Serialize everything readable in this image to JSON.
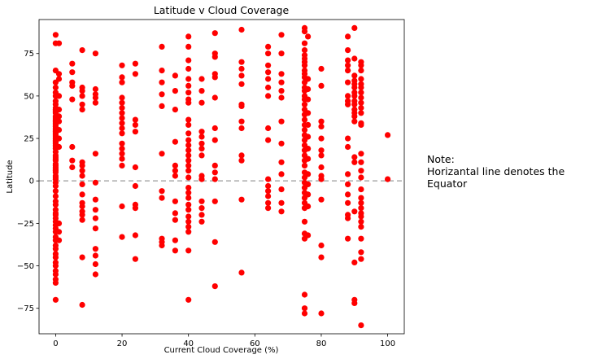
{
  "chart_data": {
    "type": "scatter",
    "title": "Latitude v Cloud Coverage",
    "xlabel": "Current Cloud Coverage (%)",
    "ylabel": "Latitude",
    "xlim": [
      -5,
      105
    ],
    "ylim": [
      -90,
      95
    ],
    "xticks": [
      0,
      20,
      40,
      60,
      80,
      100
    ],
    "yticks": [
      -75,
      -50,
      -25,
      0,
      25,
      50,
      75
    ],
    "marker_color": "#ff0000",
    "reference_line": {
      "y": 0,
      "style": "dashed",
      "color": "#b0b0b0"
    },
    "points": [
      [
        0,
        86
      ],
      [
        0,
        81
      ],
      [
        1,
        81
      ],
      [
        0,
        65
      ],
      [
        1,
        63
      ],
      [
        0,
        58
      ],
      [
        0,
        55
      ],
      [
        0,
        52
      ],
      [
        0,
        50
      ],
      [
        0,
        47
      ],
      [
        0,
        45
      ],
      [
        0,
        43
      ],
      [
        0,
        42
      ],
      [
        0,
        41
      ],
      [
        0,
        40
      ],
      [
        0,
        38
      ],
      [
        0,
        37
      ],
      [
        0,
        36
      ],
      [
        0,
        35
      ],
      [
        0,
        34
      ],
      [
        0,
        33
      ],
      [
        0,
        32
      ],
      [
        0,
        31
      ],
      [
        0,
        30
      ],
      [
        0,
        29
      ],
      [
        0,
        28
      ],
      [
        0,
        27
      ],
      [
        0,
        26
      ],
      [
        0,
        25
      ],
      [
        0,
        24
      ],
      [
        0,
        23
      ],
      [
        0,
        22
      ],
      [
        0,
        21
      ],
      [
        0,
        20
      ],
      [
        0,
        19
      ],
      [
        0,
        17
      ],
      [
        0,
        15
      ],
      [
        0,
        14
      ],
      [
        0,
        13
      ],
      [
        0,
        12
      ],
      [
        0,
        10
      ],
      [
        0,
        9
      ],
      [
        0,
        8
      ],
      [
        0,
        7
      ],
      [
        0,
        6
      ],
      [
        0,
        5
      ],
      [
        0,
        3
      ],
      [
        0,
        2
      ],
      [
        0,
        1
      ],
      [
        0,
        -1
      ],
      [
        0,
        -3
      ],
      [
        0,
        -6
      ],
      [
        0,
        -9
      ],
      [
        0,
        -12
      ],
      [
        0,
        -14
      ],
      [
        0,
        -17
      ],
      [
        0,
        -19
      ],
      [
        0,
        -20
      ],
      [
        0,
        -22
      ],
      [
        0,
        -24
      ],
      [
        0,
        -26
      ],
      [
        0,
        -28
      ],
      [
        0,
        -30
      ],
      [
        0,
        -33
      ],
      [
        0,
        -35
      ],
      [
        0,
        -38
      ],
      [
        0,
        -40
      ],
      [
        0,
        -43
      ],
      [
        0,
        -45
      ],
      [
        0,
        -48
      ],
      [
        0,
        -50
      ],
      [
        0,
        -53
      ],
      [
        0,
        -55
      ],
      [
        0,
        -58
      ],
      [
        0,
        -60
      ],
      [
        0,
        -70
      ],
      [
        1,
        60
      ],
      [
        1,
        50
      ],
      [
        1,
        42
      ],
      [
        1,
        38
      ],
      [
        1,
        35
      ],
      [
        1,
        30
      ],
      [
        1,
        25
      ],
      [
        1,
        20
      ],
      [
        1,
        -25
      ],
      [
        1,
        -30
      ],
      [
        1,
        -35
      ],
      [
        5,
        69
      ],
      [
        5,
        64
      ],
      [
        5,
        58
      ],
      [
        5,
        56
      ],
      [
        5,
        48
      ],
      [
        5,
        20
      ],
      [
        5,
        12
      ],
      [
        5,
        8
      ],
      [
        8,
        77
      ],
      [
        8,
        55
      ],
      [
        8,
        53
      ],
      [
        8,
        50
      ],
      [
        8,
        45
      ],
      [
        8,
        42
      ],
      [
        8,
        11
      ],
      [
        8,
        9
      ],
      [
        8,
        6
      ],
      [
        8,
        3
      ],
      [
        8,
        -2
      ],
      [
        8,
        -8
      ],
      [
        8,
        -13
      ],
      [
        8,
        -15
      ],
      [
        8,
        -18
      ],
      [
        8,
        -20
      ],
      [
        8,
        -23
      ],
      [
        8,
        -45
      ],
      [
        8,
        -73
      ],
      [
        12,
        75
      ],
      [
        12,
        54
      ],
      [
        12,
        51
      ],
      [
        12,
        49
      ],
      [
        12,
        46
      ],
      [
        12,
        16
      ],
      [
        12,
        -1
      ],
      [
        12,
        -11
      ],
      [
        12,
        -17
      ],
      [
        12,
        -22
      ],
      [
        12,
        -28
      ],
      [
        12,
        -40
      ],
      [
        12,
        -44
      ],
      [
        12,
        -49
      ],
      [
        12,
        -55
      ],
      [
        20,
        68
      ],
      [
        20,
        61
      ],
      [
        20,
        58
      ],
      [
        20,
        49
      ],
      [
        20,
        46
      ],
      [
        20,
        43
      ],
      [
        20,
        40
      ],
      [
        20,
        37
      ],
      [
        20,
        34
      ],
      [
        20,
        31
      ],
      [
        20,
        28
      ],
      [
        20,
        22
      ],
      [
        20,
        19
      ],
      [
        20,
        16
      ],
      [
        20,
        13
      ],
      [
        20,
        9
      ],
      [
        20,
        -15
      ],
      [
        20,
        -33
      ],
      [
        24,
        69
      ],
      [
        24,
        63
      ],
      [
        24,
        36
      ],
      [
        24,
        33
      ],
      [
        24,
        29
      ],
      [
        24,
        8
      ],
      [
        24,
        -3
      ],
      [
        24,
        -14
      ],
      [
        24,
        -16
      ],
      [
        24,
        -32
      ],
      [
        24,
        -46
      ],
      [
        32,
        79
      ],
      [
        32,
        65
      ],
      [
        32,
        58
      ],
      [
        32,
        51
      ],
      [
        32,
        44
      ],
      [
        32,
        16
      ],
      [
        32,
        -6
      ],
      [
        32,
        -10
      ],
      [
        32,
        -34
      ],
      [
        32,
        -36
      ],
      [
        32,
        -38
      ],
      [
        36,
        62
      ],
      [
        36,
        53
      ],
      [
        36,
        42
      ],
      [
        36,
        23
      ],
      [
        36,
        9
      ],
      [
        36,
        6
      ],
      [
        36,
        3
      ],
      [
        36,
        -12
      ],
      [
        36,
        -19
      ],
      [
        36,
        -23
      ],
      [
        36,
        -35
      ],
      [
        36,
        -41
      ],
      [
        40,
        85
      ],
      [
        40,
        79
      ],
      [
        40,
        71
      ],
      [
        40,
        66
      ],
      [
        40,
        60
      ],
      [
        40,
        56
      ],
      [
        40,
        52
      ],
      [
        40,
        48
      ],
      [
        40,
        46
      ],
      [
        40,
        36
      ],
      [
        40,
        33
      ],
      [
        40,
        28
      ],
      [
        40,
        24
      ],
      [
        40,
        21
      ],
      [
        40,
        18
      ],
      [
        40,
        15
      ],
      [
        40,
        12
      ],
      [
        40,
        9
      ],
      [
        40,
        6
      ],
      [
        40,
        2
      ],
      [
        40,
        -4
      ],
      [
        40,
        -7
      ],
      [
        40,
        -10
      ],
      [
        40,
        -14
      ],
      [
        40,
        -17
      ],
      [
        40,
        -21
      ],
      [
        40,
        -24
      ],
      [
        40,
        -27
      ],
      [
        40,
        -30
      ],
      [
        40,
        -41
      ],
      [
        40,
        -70
      ],
      [
        44,
        60
      ],
      [
        44,
        53
      ],
      [
        44,
        46
      ],
      [
        44,
        29
      ],
      [
        44,
        26
      ],
      [
        44,
        22
      ],
      [
        44,
        19
      ],
      [
        44,
        15
      ],
      [
        44,
        3
      ],
      [
        44,
        1
      ],
      [
        44,
        -12
      ],
      [
        44,
        -16
      ],
      [
        44,
        -20
      ],
      [
        44,
        -24
      ],
      [
        48,
        87
      ],
      [
        48,
        75
      ],
      [
        48,
        73
      ],
      [
        48,
        63
      ],
      [
        48,
        61
      ],
      [
        48,
        49
      ],
      [
        48,
        31
      ],
      [
        48,
        24
      ],
      [
        48,
        9
      ],
      [
        48,
        5
      ],
      [
        48,
        1
      ],
      [
        48,
        -12
      ],
      [
        48,
        -36
      ],
      [
        48,
        -62
      ],
      [
        56,
        89
      ],
      [
        56,
        70
      ],
      [
        56,
        66
      ],
      [
        56,
        62
      ],
      [
        56,
        57
      ],
      [
        56,
        45
      ],
      [
        56,
        44
      ],
      [
        56,
        35
      ],
      [
        56,
        31
      ],
      [
        56,
        15
      ],
      [
        56,
        12
      ],
      [
        56,
        -11
      ],
      [
        56,
        -54
      ],
      [
        64,
        79
      ],
      [
        64,
        75
      ],
      [
        64,
        68
      ],
      [
        64,
        64
      ],
      [
        64,
        60
      ],
      [
        64,
        55
      ],
      [
        64,
        50
      ],
      [
        64,
        31
      ],
      [
        64,
        24
      ],
      [
        64,
        1
      ],
      [
        64,
        -3
      ],
      [
        64,
        -6
      ],
      [
        64,
        -9
      ],
      [
        64,
        -13
      ],
      [
        64,
        -16
      ],
      [
        68,
        86
      ],
      [
        68,
        75
      ],
      [
        68,
        63
      ],
      [
        68,
        58
      ],
      [
        68,
        53
      ],
      [
        68,
        49
      ],
      [
        68,
        35
      ],
      [
        68,
        22
      ],
      [
        68,
        11
      ],
      [
        68,
        4
      ],
      [
        68,
        -5
      ],
      [
        68,
        -13
      ],
      [
        68,
        -18
      ],
      [
        75,
        90
      ],
      [
        75,
        88
      ],
      [
        75,
        81
      ],
      [
        75,
        77
      ],
      [
        75,
        74
      ],
      [
        75,
        72
      ],
      [
        75,
        70
      ],
      [
        75,
        68
      ],
      [
        75,
        65
      ],
      [
        75,
        63
      ],
      [
        75,
        61
      ],
      [
        75,
        58
      ],
      [
        75,
        55
      ],
      [
        75,
        53
      ],
      [
        75,
        50
      ],
      [
        75,
        48
      ],
      [
        75,
        45
      ],
      [
        75,
        42
      ],
      [
        75,
        39
      ],
      [
        75,
        36
      ],
      [
        75,
        33
      ],
      [
        75,
        30
      ],
      [
        75,
        27
      ],
      [
        75,
        24
      ],
      [
        75,
        21
      ],
      [
        75,
        18
      ],
      [
        75,
        15
      ],
      [
        75,
        12
      ],
      [
        75,
        9
      ],
      [
        75,
        5
      ],
      [
        75,
        2
      ],
      [
        75,
        -1
      ],
      [
        75,
        -4
      ],
      [
        75,
        -7
      ],
      [
        75,
        -10
      ],
      [
        75,
        -13
      ],
      [
        75,
        -16
      ],
      [
        75,
        -24
      ],
      [
        75,
        -31
      ],
      [
        75,
        -34
      ],
      [
        75,
        -67
      ],
      [
        75,
        -75
      ],
      [
        75,
        -78
      ],
      [
        76,
        85
      ],
      [
        76,
        60
      ],
      [
        76,
        54
      ],
      [
        76,
        48
      ],
      [
        76,
        40
      ],
      [
        76,
        33
      ],
      [
        76,
        26
      ],
      [
        76,
        19
      ],
      [
        76,
        13
      ],
      [
        76,
        4
      ],
      [
        76,
        -2
      ],
      [
        76,
        -8
      ],
      [
        76,
        -15
      ],
      [
        76,
        -32
      ],
      [
        80,
        66
      ],
      [
        80,
        56
      ],
      [
        80,
        35
      ],
      [
        80,
        32
      ],
      [
        80,
        25
      ],
      [
        80,
        18
      ],
      [
        80,
        15
      ],
      [
        80,
        8
      ],
      [
        80,
        3
      ],
      [
        80,
        1
      ],
      [
        80,
        -11
      ],
      [
        80,
        -38
      ],
      [
        80,
        -45
      ],
      [
        80,
        -78
      ],
      [
        88,
        85
      ],
      [
        88,
        77
      ],
      [
        88,
        71
      ],
      [
        88,
        68
      ],
      [
        88,
        65
      ],
      [
        88,
        58
      ],
      [
        88,
        50
      ],
      [
        88,
        47
      ],
      [
        88,
        45
      ],
      [
        88,
        25
      ],
      [
        88,
        20
      ],
      [
        88,
        4
      ],
      [
        88,
        -2
      ],
      [
        88,
        -8
      ],
      [
        88,
        -13
      ],
      [
        88,
        -20
      ],
      [
        88,
        -22
      ],
      [
        88,
        -34
      ],
      [
        90,
        90
      ],
      [
        90,
        72
      ],
      [
        90,
        62
      ],
      [
        90,
        59
      ],
      [
        90,
        57
      ],
      [
        90,
        55
      ],
      [
        90,
        52
      ],
      [
        90,
        50
      ],
      [
        90,
        47
      ],
      [
        90,
        45
      ],
      [
        90,
        42
      ],
      [
        90,
        40
      ],
      [
        90,
        38
      ],
      [
        90,
        35
      ],
      [
        90,
        14
      ],
      [
        90,
        11
      ],
      [
        90,
        -18
      ],
      [
        90,
        -48
      ],
      [
        90,
        -70
      ],
      [
        90,
        -72
      ],
      [
        92,
        70
      ],
      [
        92,
        68
      ],
      [
        92,
        65
      ],
      [
        92,
        60
      ],
      [
        92,
        57
      ],
      [
        92,
        55
      ],
      [
        92,
        52
      ],
      [
        92,
        49
      ],
      [
        92,
        46
      ],
      [
        92,
        43
      ],
      [
        92,
        40
      ],
      [
        92,
        34
      ],
      [
        92,
        33
      ],
      [
        92,
        16
      ],
      [
        92,
        11
      ],
      [
        92,
        6
      ],
      [
        92,
        2
      ],
      [
        92,
        -5
      ],
      [
        92,
        -10
      ],
      [
        92,
        -13
      ],
      [
        92,
        -16
      ],
      [
        92,
        -19
      ],
      [
        92,
        -21
      ],
      [
        92,
        -24
      ],
      [
        92,
        -27
      ],
      [
        92,
        -34
      ],
      [
        92,
        -42
      ],
      [
        92,
        -46
      ],
      [
        92,
        -85
      ],
      [
        100,
        27
      ],
      [
        100,
        1
      ]
    ]
  },
  "note": {
    "line1": "Note:",
    "line2": "Horizantal line denotes the Equator"
  }
}
